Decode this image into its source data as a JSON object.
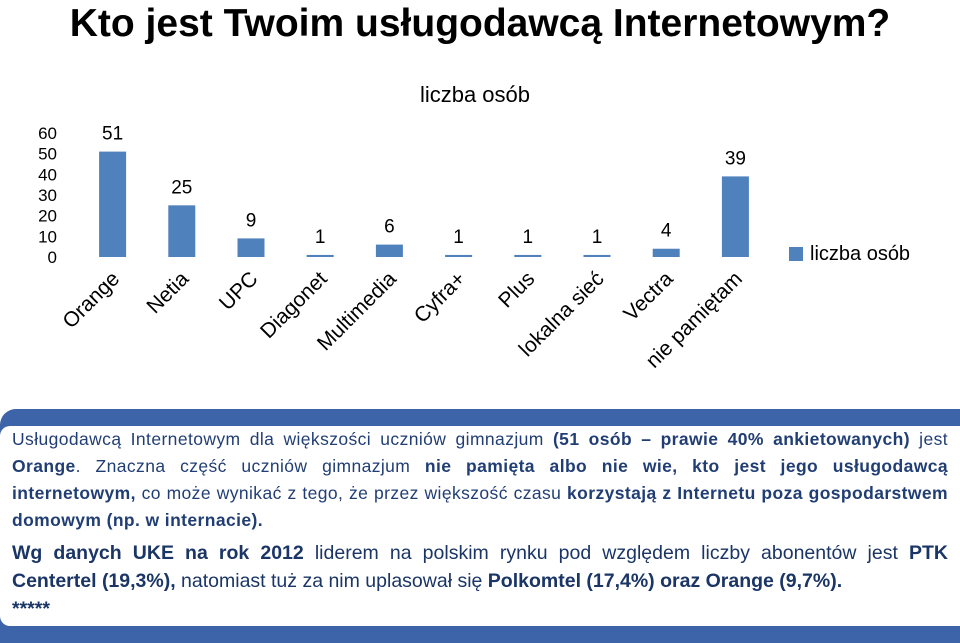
{
  "page_title": "Kto jest Twoim usługodawcą Internetowym?",
  "chart_data": {
    "type": "bar",
    "title": "liczba osób",
    "categories": [
      "Orange",
      "Netia",
      "UPC",
      "Diagonet",
      "Multimedia",
      "Cyfra+",
      "Plus",
      "lokalna sieć",
      "Vectra",
      "nie pamiętam"
    ],
    "series": [
      {
        "name": "liczba osób",
        "values": [
          51,
          25,
          9,
          1,
          6,
          1,
          1,
          1,
          4,
          39
        ]
      }
    ],
    "ylim": [
      0,
      60
    ],
    "yticks": [
      0,
      10,
      20,
      30,
      40,
      50,
      60
    ],
    "grid": false,
    "legend": "right",
    "bar_color": "#4f81bd",
    "data_labels": true
  },
  "text_panel": {
    "border_color": "#3d63a8",
    "text_color": "#213e74",
    "p1": {
      "s1": "Usługodawcą Internetowym dla większości uczniów gimnazjum ",
      "s2": "(51 osób – prawie 40% ankietowanych)",
      "s3": " jest ",
      "s4": "Orange",
      "s5": ". Znaczna część uczniów gimnazjum ",
      "s6": "nie pamięta albo nie wie, kto jest jego usługodawcą internetowym,",
      "s7": " co może wynikać z tego, że przez większość czasu ",
      "s8": "korzystają z Internetu poza gospodarstwem domowym (np. w internacie)."
    },
    "p2": {
      "s1": "Wg danych UKE na rok 2012",
      "s2": " liderem na polskim rynku pod względem liczby abonentów jest ",
      "s3": "PTK Centertel (19,3%),",
      "s4": " natomiast tuż za nim uplasował się ",
      "s5": "Polkomtel (17,4%) oraz Orange (9,7%).",
      "s6": "*****"
    }
  }
}
